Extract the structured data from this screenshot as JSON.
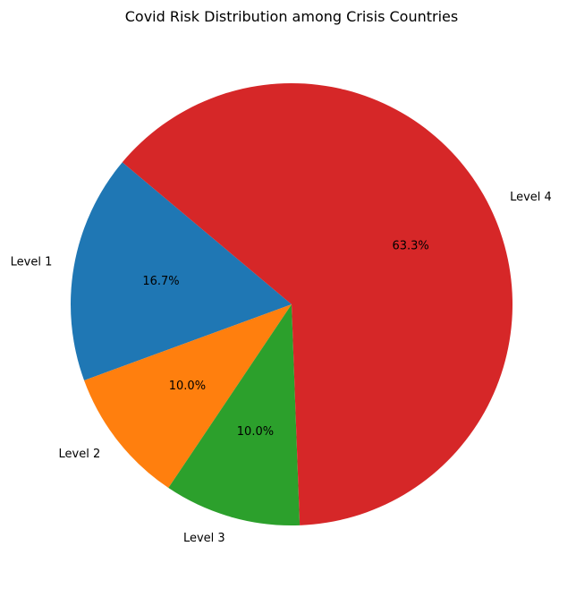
{
  "chart_data": {
    "type": "pie",
    "title": "Covid Risk Distribution among Crisis Countries",
    "categories": [
      "Level 1",
      "Level 2",
      "Level 3",
      "Level 4"
    ],
    "values": [
      16.7,
      10.0,
      10.0,
      63.3
    ],
    "percent_labels": [
      "16.7%",
      "10.0%",
      "10.0%",
      "63.3%"
    ],
    "colors": [
      "#1f77b4",
      "#ff7f0e",
      "#2ca02c",
      "#d62728"
    ],
    "start_angle_deg": 140,
    "direction": "counterclockwise",
    "legend": "none"
  }
}
